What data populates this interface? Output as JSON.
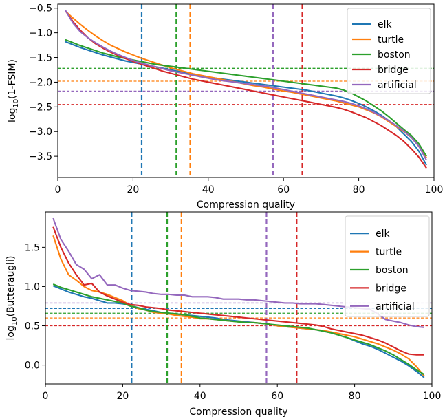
{
  "chart_data": [
    {
      "type": "line",
      "xlabel": "Compression quality",
      "ylabel_prefix": "log",
      "ylabel_sub": "10",
      "ylabel_suffix": "(1-FSIM)",
      "xlim": [
        0,
        100
      ],
      "ylim": [
        -3.93,
        -0.42
      ],
      "xticks": [
        0,
        20,
        40,
        60,
        80,
        100
      ],
      "yticks": [
        -3.5,
        -3.0,
        -2.5,
        -2.0,
        -1.5,
        -1.0,
        -0.5
      ],
      "ytick_labels": [
        "−3.5",
        "−3.0",
        "−2.5",
        "−2.0",
        "−1.5",
        "−1.0",
        "−0.5"
      ],
      "legend_position": "top-right",
      "x": [
        2,
        4,
        6,
        8,
        10,
        12,
        14,
        16,
        18,
        20,
        22,
        24,
        26,
        28,
        30,
        32,
        34,
        36,
        38,
        40,
        42,
        44,
        46,
        48,
        50,
        52,
        54,
        56,
        58,
        60,
        62,
        64,
        66,
        68,
        70,
        72,
        74,
        76,
        78,
        80,
        82,
        84,
        86,
        88,
        90,
        92,
        94,
        96,
        98
      ],
      "series": [
        {
          "name": "elk",
          "color": "#1f77b4",
          "values": [
            -1.18,
            -1.24,
            -1.3,
            -1.35,
            -1.4,
            -1.45,
            -1.49,
            -1.53,
            -1.57,
            -1.6,
            -1.63,
            -1.66,
            -1.69,
            -1.72,
            -1.75,
            -1.78,
            -1.81,
            -1.84,
            -1.87,
            -1.9,
            -1.92,
            -1.94,
            -1.96,
            -1.98,
            -2.0,
            -2.02,
            -2.04,
            -2.06,
            -2.08,
            -2.1,
            -2.12,
            -2.14,
            -2.16,
            -2.19,
            -2.22,
            -2.25,
            -2.28,
            -2.32,
            -2.37,
            -2.43,
            -2.5,
            -2.58,
            -2.67,
            -2.78,
            -2.9,
            -3.05,
            -3.2,
            -3.4,
            -3.68
          ]
        },
        {
          "name": "turtle",
          "color": "#ff7f0e",
          "values": [
            -0.56,
            -0.7,
            -0.83,
            -0.95,
            -1.06,
            -1.16,
            -1.25,
            -1.32,
            -1.39,
            -1.45,
            -1.51,
            -1.56,
            -1.61,
            -1.66,
            -1.71,
            -1.75,
            -1.79,
            -1.83,
            -1.86,
            -1.89,
            -1.92,
            -1.95,
            -1.98,
            -2.01,
            -2.04,
            -2.07,
            -2.09,
            -2.12,
            -2.15,
            -2.18,
            -2.2,
            -2.23,
            -2.26,
            -2.29,
            -2.32,
            -2.35,
            -2.38,
            -2.42,
            -2.46,
            -2.5,
            -2.56,
            -2.62,
            -2.7,
            -2.8,
            -2.9,
            -3.0,
            -3.12,
            -3.3,
            -3.53
          ]
        },
        {
          "name": "boston",
          "color": "#2ca02c",
          "values": [
            -1.14,
            -1.2,
            -1.26,
            -1.31,
            -1.36,
            -1.41,
            -1.45,
            -1.49,
            -1.52,
            -1.55,
            -1.58,
            -1.61,
            -1.64,
            -1.66,
            -1.68,
            -1.7,
            -1.72,
            -1.74,
            -1.76,
            -1.78,
            -1.8,
            -1.82,
            -1.84,
            -1.86,
            -1.88,
            -1.9,
            -1.92,
            -1.94,
            -1.96,
            -1.98,
            -2.0,
            -2.02,
            -2.04,
            -2.06,
            -2.08,
            -2.1,
            -2.12,
            -2.16,
            -2.22,
            -2.3,
            -2.38,
            -2.48,
            -2.58,
            -2.7,
            -2.83,
            -2.96,
            -3.08,
            -3.25,
            -3.5
          ]
        },
        {
          "name": "bridge",
          "color": "#d62728",
          "values": [
            -0.55,
            -0.77,
            -0.95,
            -1.1,
            -1.22,
            -1.31,
            -1.39,
            -1.46,
            -1.52,
            -1.58,
            -1.63,
            -1.68,
            -1.73,
            -1.78,
            -1.82,
            -1.86,
            -1.9,
            -1.94,
            -1.97,
            -2.0,
            -2.03,
            -2.06,
            -2.09,
            -2.12,
            -2.15,
            -2.18,
            -2.21,
            -2.24,
            -2.27,
            -2.3,
            -2.33,
            -2.36,
            -2.39,
            -2.42,
            -2.45,
            -2.48,
            -2.51,
            -2.55,
            -2.6,
            -2.66,
            -2.72,
            -2.8,
            -2.88,
            -2.98,
            -3.08,
            -3.2,
            -3.35,
            -3.52,
            -3.74
          ]
        },
        {
          "name": "artificial",
          "color": "#9467bd",
          "values": [
            -0.54,
            -0.8,
            -0.98,
            -1.1,
            -1.2,
            -1.29,
            -1.37,
            -1.44,
            -1.5,
            -1.56,
            -1.61,
            -1.65,
            -1.69,
            -1.73,
            -1.77,
            -1.8,
            -1.83,
            -1.86,
            -1.89,
            -1.92,
            -1.95,
            -1.97,
            -1.99,
            -2.01,
            -2.03,
            -2.05,
            -2.07,
            -2.09,
            -2.12,
            -2.15,
            -2.18,
            -2.21,
            -2.24,
            -2.27,
            -2.3,
            -2.33,
            -2.36,
            -2.39,
            -2.43,
            -2.48,
            -2.54,
            -2.61,
            -2.69,
            -2.78,
            -2.88,
            -2.99,
            -3.12,
            -3.3,
            -3.58
          ]
        }
      ],
      "reference_lines": {
        "vertical": [
          {
            "series": "elk",
            "x": 22.3
          },
          {
            "series": "boston",
            "x": 31.5
          },
          {
            "series": "turtle",
            "x": 35.2
          },
          {
            "series": "artificial",
            "x": 57.2
          },
          {
            "series": "bridge",
            "x": 65.0
          }
        ],
        "horizontal": [
          {
            "series": "boston",
            "y": -1.72
          },
          {
            "series": "turtle",
            "y": -1.98
          },
          {
            "series": "artificial",
            "y": -2.18
          },
          {
            "series": "bridge",
            "y": -2.45
          }
        ]
      }
    },
    {
      "type": "line",
      "xlabel": "Compression quality",
      "ylabel_prefix": "log",
      "ylabel_sub": "10",
      "ylabel_suffix": "(Butteraugli)",
      "xlim": [
        0,
        100
      ],
      "ylim": [
        -0.24,
        1.95
      ],
      "xticks": [
        0,
        20,
        40,
        60,
        80,
        100
      ],
      "yticks": [
        0.0,
        0.5,
        1.0,
        1.5
      ],
      "ytick_labels": [
        "0.0",
        "0.5",
        "1.0",
        "1.5"
      ],
      "legend_position": "top-right",
      "x": [
        2,
        4,
        6,
        8,
        10,
        12,
        14,
        16,
        18,
        20,
        22,
        24,
        26,
        28,
        30,
        32,
        34,
        36,
        38,
        40,
        42,
        44,
        46,
        48,
        50,
        52,
        54,
        56,
        58,
        60,
        62,
        64,
        66,
        68,
        70,
        72,
        74,
        76,
        78,
        80,
        82,
        84,
        86,
        88,
        90,
        92,
        94,
        96,
        98
      ],
      "series": [
        {
          "name": "elk",
          "color": "#1f77b4",
          "values": [
            1.01,
            0.97,
            0.93,
            0.9,
            0.87,
            0.85,
            0.82,
            0.79,
            0.79,
            0.78,
            0.76,
            0.73,
            0.71,
            0.69,
            0.67,
            0.66,
            0.65,
            0.64,
            0.63,
            0.62,
            0.61,
            0.6,
            0.58,
            0.57,
            0.56,
            0.55,
            0.54,
            0.53,
            0.52,
            0.5,
            0.49,
            0.48,
            0.47,
            0.46,
            0.45,
            0.43,
            0.41,
            0.38,
            0.35,
            0.31,
            0.27,
            0.24,
            0.2,
            0.15,
            0.1,
            0.05,
            -0.01,
            -0.08,
            -0.16
          ]
        },
        {
          "name": "turtle",
          "color": "#ff7f0e",
          "values": [
            1.65,
            1.35,
            1.15,
            1.08,
            1.0,
            0.95,
            0.93,
            0.9,
            0.86,
            0.82,
            0.76,
            0.72,
            0.7,
            0.67,
            0.66,
            0.65,
            0.63,
            0.62,
            0.61,
            0.59,
            0.59,
            0.58,
            0.57,
            0.56,
            0.55,
            0.54,
            0.54,
            0.53,
            0.52,
            0.5,
            0.49,
            0.48,
            0.47,
            0.46,
            0.45,
            0.44,
            0.42,
            0.4,
            0.38,
            0.36,
            0.33,
            0.3,
            0.27,
            0.23,
            0.19,
            0.14,
            0.08,
            -0.02,
            -0.14
          ]
        },
        {
          "name": "boston",
          "color": "#2ca02c",
          "values": [
            1.03,
            0.99,
            0.96,
            0.93,
            0.9,
            0.87,
            0.85,
            0.83,
            0.81,
            0.79,
            0.75,
            0.73,
            0.7,
            0.68,
            0.67,
            0.66,
            0.65,
            0.64,
            0.62,
            0.6,
            0.59,
            0.58,
            0.57,
            0.56,
            0.55,
            0.54,
            0.54,
            0.53,
            0.52,
            0.51,
            0.5,
            0.49,
            0.48,
            0.47,
            0.45,
            0.43,
            0.41,
            0.38,
            0.35,
            0.32,
            0.29,
            0.26,
            0.22,
            0.18,
            0.13,
            0.07,
            0.01,
            -0.06,
            -0.12
          ]
        },
        {
          "name": "bridge",
          "color": "#d62728",
          "values": [
            1.76,
            1.5,
            1.3,
            1.15,
            1.02,
            1.04,
            0.93,
            0.88,
            0.84,
            0.8,
            0.77,
            0.76,
            0.74,
            0.73,
            0.72,
            0.7,
            0.69,
            0.68,
            0.67,
            0.66,
            0.65,
            0.64,
            0.63,
            0.62,
            0.61,
            0.6,
            0.59,
            0.58,
            0.57,
            0.56,
            0.55,
            0.54,
            0.53,
            0.52,
            0.51,
            0.49,
            0.46,
            0.44,
            0.42,
            0.4,
            0.38,
            0.35,
            0.32,
            0.28,
            0.23,
            0.18,
            0.14,
            0.13,
            0.13
          ]
        },
        {
          "name": "artificial",
          "color": "#9467bd",
          "values": [
            1.87,
            1.6,
            1.45,
            1.28,
            1.22,
            1.1,
            1.15,
            1.02,
            1.02,
            0.98,
            0.95,
            0.94,
            0.93,
            0.91,
            0.9,
            0.9,
            0.89,
            0.89,
            0.87,
            0.87,
            0.87,
            0.86,
            0.84,
            0.84,
            0.84,
            0.83,
            0.83,
            0.82,
            0.81,
            0.8,
            0.79,
            0.79,
            0.78,
            0.78,
            0.78,
            0.77,
            0.76,
            0.75,
            0.74,
            0.73,
            0.72,
            0.71,
            0.65,
            0.58,
            0.56,
            0.54,
            0.51,
            0.49,
            0.48
          ]
        }
      ],
      "reference_lines": {
        "vertical": [
          {
            "series": "elk",
            "x": 22.3
          },
          {
            "series": "boston",
            "x": 31.5
          },
          {
            "series": "turtle",
            "x": 35.2
          },
          {
            "series": "artificial",
            "x": 57.2
          },
          {
            "series": "bridge",
            "x": 65.0
          }
        ],
        "horizontal": [
          {
            "series": "artificial",
            "y": 0.79
          },
          {
            "series": "elk",
            "y": 0.72
          },
          {
            "series": "boston",
            "y": 0.66
          },
          {
            "series": "turtle",
            "y": 0.6
          },
          {
            "series": "bridge",
            "y": 0.5
          }
        ]
      }
    }
  ]
}
